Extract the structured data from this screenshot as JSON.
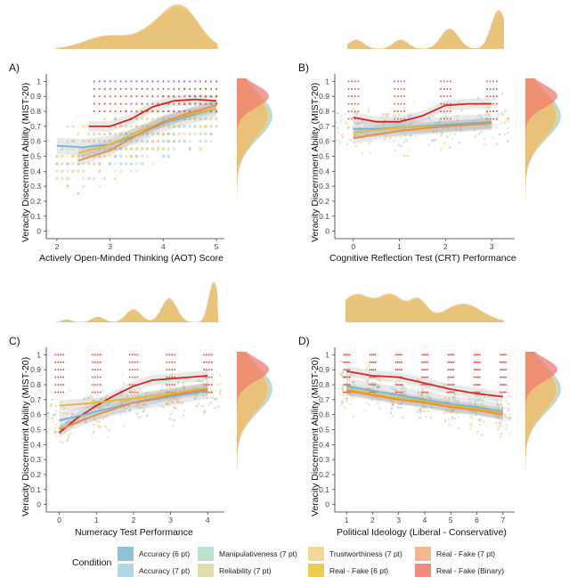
{
  "colors": {
    "acc6": "#7fbcd2",
    "acc7": "#a9d4e3",
    "manip7": "#b6dcc9",
    "rel7": "#dcdba4",
    "trust7": "#f0d58a",
    "rf6": "#e9c63b",
    "rf7": "#f1b37f",
    "rfbin": "#ef7d70",
    "fitRed": "#d7261e",
    "fitBlue": "#6bb8d6",
    "fitYellow": "#e8b923",
    "fitOrange": "#f08a3c",
    "fitGreen": "#9ecfb4",
    "ribbon": "#9a9a9a"
  },
  "legend": {
    "title": "Condition",
    "items": [
      {
        "label": "Accuracy (6 pt)",
        "key": "acc6"
      },
      {
        "label": "Accuracy (7 pt)",
        "key": "acc7"
      },
      {
        "label": "Manipulativeness (7 pt)",
        "key": "manip7"
      },
      {
        "label": "Reliability (7 pt)",
        "key": "rel7"
      },
      {
        "label": "Trustworthiness (7 pt)",
        "key": "trust7"
      },
      {
        "label": "Real - Fake (6 pt)",
        "key": "rf6"
      },
      {
        "label": "Real - Fake (7 pt)",
        "key": "rf7"
      },
      {
        "label": "Real - Fake (Binary)",
        "key": "rfbin"
      }
    ]
  },
  "chart_data": [
    {
      "panel": "A)",
      "type": "scatter",
      "xlabel": "Actively Open-Minded Thinking (AOT) Score",
      "ylabel": "Veracity Discernment Ability (MIST-20)",
      "xlim": [
        1.8,
        5.15
      ],
      "ylim": [
        -0.05,
        1.05
      ],
      "xticks": [
        2,
        3,
        4,
        5
      ],
      "yticks": [
        0,
        0.1,
        0.2,
        0.3,
        0.4,
        0.5,
        0.6,
        0.7,
        0.8,
        0.9,
        1
      ],
      "fits": [
        {
          "color": "fitRed",
          "x": [
            2.6,
            3.0,
            3.4,
            3.8,
            4.2,
            4.6,
            5.0
          ],
          "y": [
            0.7,
            0.7,
            0.75,
            0.83,
            0.87,
            0.88,
            0.87
          ]
        },
        {
          "color": "fitBlue",
          "x": [
            2.0,
            2.5,
            3.0,
            3.5,
            4.0,
            4.5,
            5.0
          ],
          "y": [
            0.57,
            0.56,
            0.58,
            0.64,
            0.72,
            0.77,
            0.82
          ]
        },
        {
          "color": "fitYellow",
          "x": [
            2.4,
            3.0,
            3.5,
            4.0,
            4.5,
            5.0
          ],
          "y": [
            0.52,
            0.58,
            0.66,
            0.73,
            0.78,
            0.82
          ]
        },
        {
          "color": "fitOrange",
          "x": [
            2.4,
            3.0,
            3.5,
            4.0,
            4.5,
            5.0
          ],
          "y": [
            0.47,
            0.54,
            0.64,
            0.73,
            0.79,
            0.84
          ]
        }
      ]
    },
    {
      "panel": "B)",
      "type": "scatter",
      "xlabel": "Cognitive Reflection Test (CRT) Performance",
      "ylabel": "Veracity Discernment Ability (MIST-20)",
      "xlim": [
        -0.4,
        3.5
      ],
      "ylim": [
        -0.05,
        1.05
      ],
      "xticks": [
        0,
        1,
        2,
        3
      ],
      "yticks": [
        0,
        0.1,
        0.2,
        0.3,
        0.4,
        0.5,
        0.6,
        0.7,
        0.8,
        0.9,
        1
      ],
      "fits": [
        {
          "color": "fitRed",
          "x": [
            0,
            0.5,
            1.0,
            1.5,
            2.0,
            2.5,
            3.0
          ],
          "y": [
            0.76,
            0.73,
            0.73,
            0.77,
            0.84,
            0.85,
            0.85
          ]
        },
        {
          "color": "fitBlue",
          "x": [
            0,
            1,
            2,
            3
          ],
          "y": [
            0.68,
            0.69,
            0.71,
            0.73
          ]
        },
        {
          "color": "fitYellow",
          "x": [
            0,
            1,
            2,
            3
          ],
          "y": [
            0.66,
            0.69,
            0.7,
            0.72
          ]
        },
        {
          "color": "fitOrange",
          "x": [
            0,
            1,
            2,
            3
          ],
          "y": [
            0.62,
            0.67,
            0.7,
            0.72
          ]
        }
      ]
    },
    {
      "panel": "C)",
      "type": "scatter",
      "xlabel": "Numeracy Test Performance",
      "ylabel": "Veracity Discernment Ability (MIST-20)",
      "xlim": [
        -0.35,
        4.45
      ],
      "ylim": [
        -0.05,
        1.05
      ],
      "xticks": [
        0,
        1,
        2,
        3,
        4
      ],
      "yticks": [
        0,
        0.1,
        0.2,
        0.3,
        0.4,
        0.5,
        0.6,
        0.7,
        0.8,
        0.9,
        1
      ],
      "fits": [
        {
          "color": "fitRed",
          "x": [
            0,
            0.5,
            1.0,
            1.5,
            2.0,
            2.5,
            3.0,
            3.5,
            4.0
          ],
          "y": [
            0.48,
            0.58,
            0.66,
            0.73,
            0.79,
            0.83,
            0.84,
            0.85,
            0.86
          ]
        },
        {
          "color": "fitBlue",
          "x": [
            0,
            1,
            2,
            3,
            4
          ],
          "y": [
            0.56,
            0.62,
            0.68,
            0.72,
            0.76
          ]
        },
        {
          "color": "fitYellow",
          "x": [
            0,
            1,
            2,
            3,
            4
          ],
          "y": [
            0.66,
            0.68,
            0.71,
            0.74,
            0.78
          ]
        },
        {
          "color": "fitOrange",
          "x": [
            0,
            1,
            2,
            3,
            4
          ],
          "y": [
            0.5,
            0.6,
            0.68,
            0.73,
            0.77
          ]
        }
      ]
    },
    {
      "panel": "D)",
      "type": "scatter",
      "xlabel": "Political Ideology (Liberal - Conservative)",
      "ylabel": "Veracity Discernment Ability (MIST-20)",
      "xlim": [
        0.55,
        7.45
      ],
      "ylim": [
        -0.05,
        1.05
      ],
      "xticks": [
        1,
        2,
        3,
        4,
        5,
        6,
        7
      ],
      "yticks": [
        0,
        0.1,
        0.2,
        0.3,
        0.4,
        0.5,
        0.6,
        0.7,
        0.8,
        0.9,
        1
      ],
      "fits": [
        {
          "color": "fitRed",
          "x": [
            1,
            2,
            3,
            4,
            5,
            6,
            7
          ],
          "y": [
            0.89,
            0.86,
            0.85,
            0.81,
            0.77,
            0.74,
            0.72
          ]
        },
        {
          "color": "fitBlue",
          "x": [
            1,
            2,
            3,
            4,
            5,
            6,
            7
          ],
          "y": [
            0.79,
            0.76,
            0.73,
            0.7,
            0.67,
            0.65,
            0.62
          ]
        },
        {
          "color": "fitYellow",
          "x": [
            1,
            2,
            3,
            4,
            5,
            6,
            7
          ],
          "y": [
            0.77,
            0.74,
            0.71,
            0.69,
            0.66,
            0.64,
            0.61
          ]
        },
        {
          "color": "fitOrange",
          "x": [
            1,
            2,
            3,
            4,
            5,
            6,
            7
          ],
          "y": [
            0.76,
            0.73,
            0.7,
            0.68,
            0.65,
            0.63,
            0.6
          ]
        }
      ]
    }
  ]
}
